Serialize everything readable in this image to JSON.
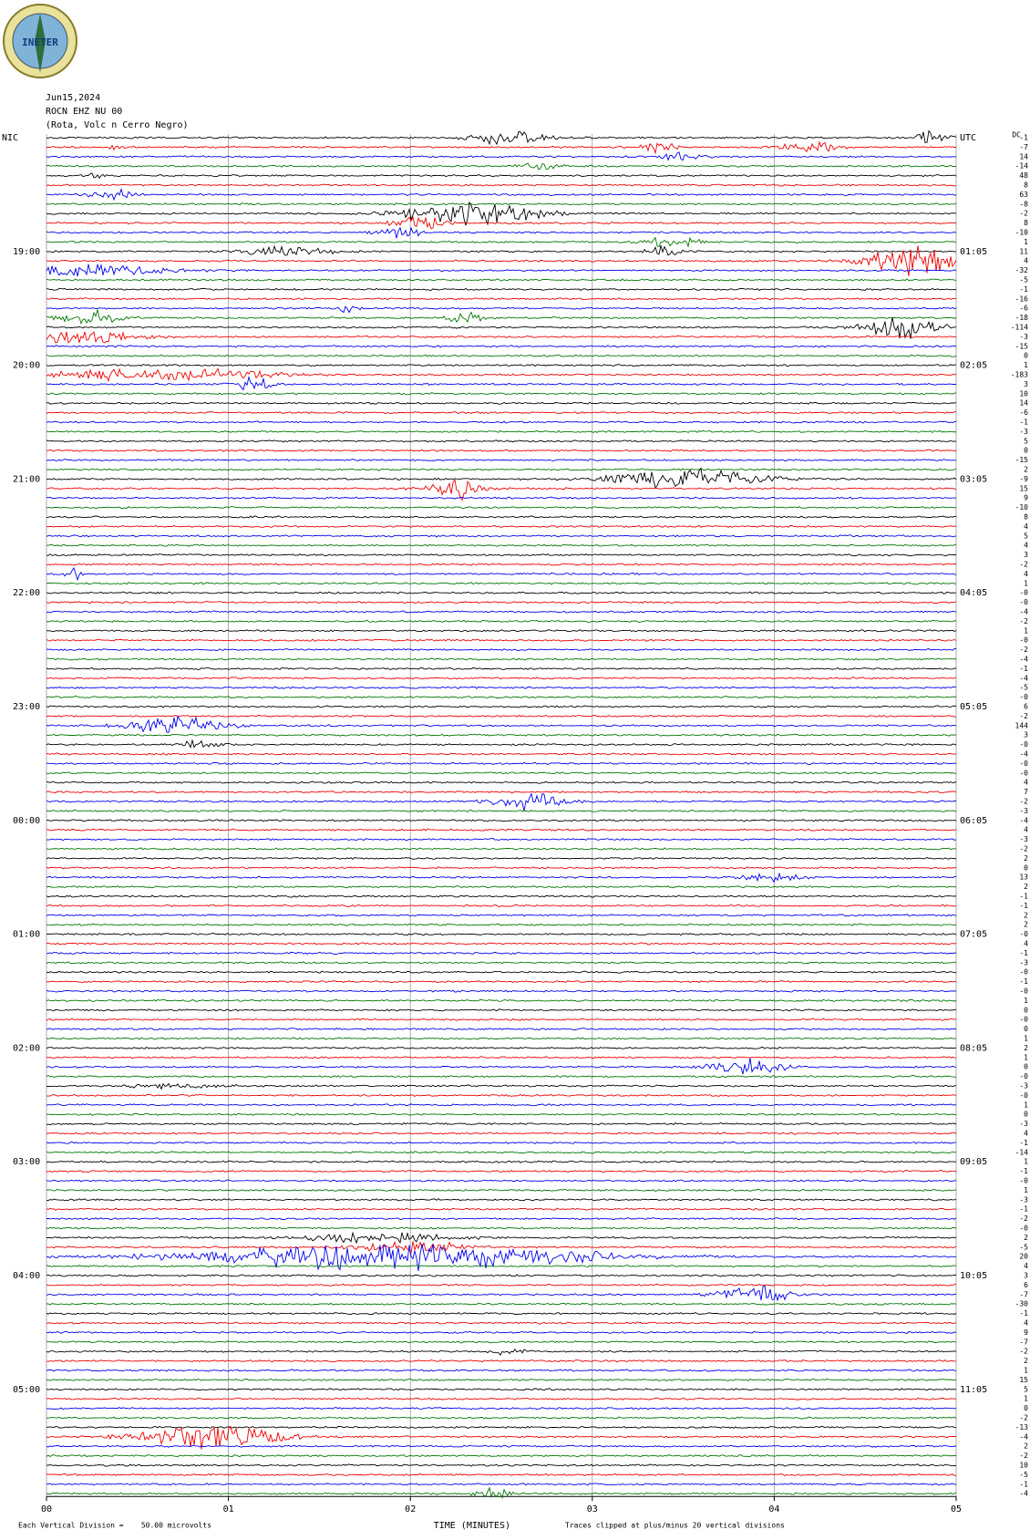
{
  "logo": {
    "text": "INETER"
  },
  "header": {
    "date": "Jun15,2024",
    "station": "ROCN EHZ NU 00",
    "location": "(Rota, Volc n Cerro Negro)"
  },
  "dc_header": "DC",
  "rows": [
    {
      "nic": "NIC",
      "utc": "UTC",
      "dc": "-1"
    },
    {
      "dc": "-7"
    },
    {
      "dc": "14"
    },
    {
      "dc": "-14"
    },
    {
      "dc": "48"
    },
    {
      "dc": "8"
    },
    {
      "dc": "63"
    },
    {
      "dc": "-8"
    },
    {
      "dc": "-2"
    },
    {
      "dc": "8"
    },
    {
      "dc": "-10"
    },
    {
      "dc": "1"
    },
    {
      "nic": "19:00",
      "utc": "01:05",
      "dc": "11"
    },
    {
      "dc": "4"
    },
    {
      "dc": "-32"
    },
    {
      "dc": "-5"
    },
    {
      "dc": "-1"
    },
    {
      "dc": "-16"
    },
    {
      "dc": "-6"
    },
    {
      "dc": "-18"
    },
    {
      "dc": "-114"
    },
    {
      "dc": "-3"
    },
    {
      "dc": "-15"
    },
    {
      "dc": "0"
    },
    {
      "nic": "20:00",
      "utc": "02:05",
      "dc": "1"
    },
    {
      "dc": "-183"
    },
    {
      "dc": "3"
    },
    {
      "dc": "10"
    },
    {
      "dc": "14"
    },
    {
      "dc": "-6"
    },
    {
      "dc": "-1"
    },
    {
      "dc": "-3"
    },
    {
      "dc": "5"
    },
    {
      "dc": "0"
    },
    {
      "dc": "-15"
    },
    {
      "dc": "2"
    },
    {
      "nic": "21:00",
      "utc": "03:05",
      "dc": "-9"
    },
    {
      "dc": "15"
    },
    {
      "dc": "9"
    },
    {
      "dc": "-10"
    },
    {
      "dc": "8"
    },
    {
      "dc": "4"
    },
    {
      "dc": "5"
    },
    {
      "dc": "4"
    },
    {
      "dc": "3"
    },
    {
      "dc": "-2"
    },
    {
      "dc": "4"
    },
    {
      "dc": "1"
    },
    {
      "nic": "22:00",
      "utc": "04:05",
      "dc": "-0"
    },
    {
      "dc": "-0"
    },
    {
      "dc": "-4"
    },
    {
      "dc": "-2"
    },
    {
      "dc": "1"
    },
    {
      "dc": "-0"
    },
    {
      "dc": "-2"
    },
    {
      "dc": "-4"
    },
    {
      "dc": "-1"
    },
    {
      "dc": "-4"
    },
    {
      "dc": "-5"
    },
    {
      "dc": "-0"
    },
    {
      "nic": "23:00",
      "utc": "05:05",
      "dc": "6"
    },
    {
      "dc": "-2"
    },
    {
      "dc": "144"
    },
    {
      "dc": "3"
    },
    {
      "dc": "-0"
    },
    {
      "dc": "-4"
    },
    {
      "dc": "-0"
    },
    {
      "dc": "-0"
    },
    {
      "dc": "4"
    },
    {
      "dc": "7"
    },
    {
      "dc": "-2"
    },
    {
      "dc": "-3"
    },
    {
      "nic": "00:00",
      "utc": "06:05",
      "dc": "-4"
    },
    {
      "dc": "4"
    },
    {
      "dc": "-3"
    },
    {
      "dc": "-2"
    },
    {
      "dc": "2"
    },
    {
      "dc": "0"
    },
    {
      "dc": "13"
    },
    {
      "dc": "2"
    },
    {
      "dc": "-1"
    },
    {
      "dc": "-1"
    },
    {
      "dc": "2"
    },
    {
      "dc": "2"
    },
    {
      "nic": "01:00",
      "utc": "07:05",
      "dc": "-0"
    },
    {
      "dc": "4"
    },
    {
      "dc": "-1"
    },
    {
      "dc": "-3"
    },
    {
      "dc": "-0"
    },
    {
      "dc": "-1"
    },
    {
      "dc": "-0"
    },
    {
      "dc": "1"
    },
    {
      "dc": "0"
    },
    {
      "dc": "-0"
    },
    {
      "dc": "0"
    },
    {
      "dc": "1"
    },
    {
      "nic": "02:00",
      "utc": "08:05",
      "dc": "2"
    },
    {
      "dc": "1"
    },
    {
      "dc": "0"
    },
    {
      "dc": "-0"
    },
    {
      "dc": "-3"
    },
    {
      "dc": "-0"
    },
    {
      "dc": "1"
    },
    {
      "dc": "0"
    },
    {
      "dc": "-3"
    },
    {
      "dc": "4"
    },
    {
      "dc": "-1"
    },
    {
      "dc": "-14"
    },
    {
      "nic": "03:00",
      "utc": "09:05",
      "dc": "1"
    },
    {
      "dc": "-1"
    },
    {
      "dc": "-0"
    },
    {
      "dc": "1"
    },
    {
      "dc": "-3"
    },
    {
      "dc": "-1"
    },
    {
      "dc": "-2"
    },
    {
      "dc": "-0"
    },
    {
      "dc": "2"
    },
    {
      "dc": "-5"
    },
    {
      "dc": "20"
    },
    {
      "dc": "4"
    },
    {
      "nic": "04:00",
      "utc": "10:05",
      "dc": "3"
    },
    {
      "dc": "6"
    },
    {
      "dc": "-7"
    },
    {
      "dc": "-30"
    },
    {
      "dc": "-1"
    },
    {
      "dc": "4"
    },
    {
      "dc": "9"
    },
    {
      "dc": "-7"
    },
    {
      "dc": "-2"
    },
    {
      "dc": "2"
    },
    {
      "dc": "1"
    },
    {
      "dc": "15"
    },
    {
      "nic": "05:00",
      "utc": "11:05",
      "dc": "5"
    },
    {
      "dc": "1"
    },
    {
      "dc": "0"
    },
    {
      "dc": "-2"
    },
    {
      "dc": "-13"
    },
    {
      "dc": "-4"
    },
    {
      "dc": "2"
    },
    {
      "dc": "-2"
    },
    {
      "dc": "10"
    },
    {
      "dc": "-5"
    },
    {
      "dc": "-1"
    },
    {
      "dc": "-4"
    }
  ],
  "x_axis": {
    "ticks": [
      "00",
      "01",
      "02",
      "03",
      "04",
      "05"
    ],
    "label": "TIME (MINUTES)"
  },
  "footer": {
    "scale": "Each Vertical Division =    50.00 microvolts",
    "clip": "Traces clipped at plus/minus 20 vertical divisions"
  }
}
